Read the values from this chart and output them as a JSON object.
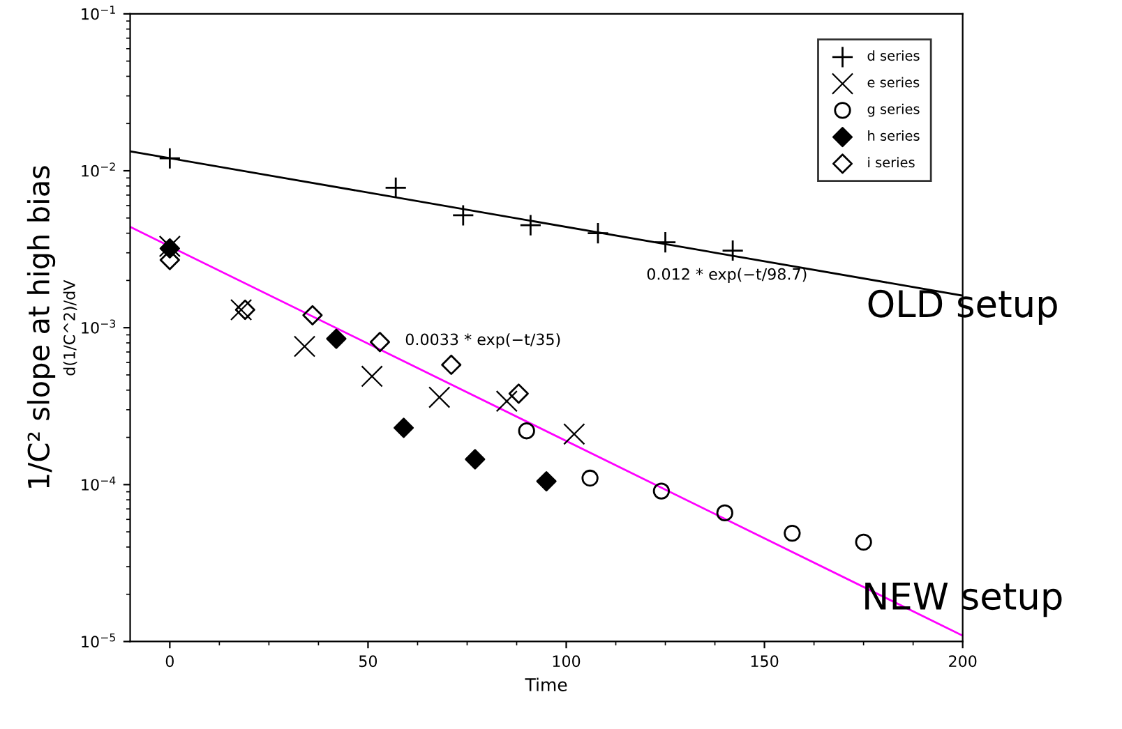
{
  "chart_data": {
    "type": "scatter",
    "xlabel": "Time",
    "ylabel": "1/C² slope at high bias",
    "log": "y",
    "xlim": [
      -10,
      200
    ],
    "xticks": [
      0,
      50,
      100,
      150,
      200
    ],
    "ylim": [
      1e-05,
      0.1
    ],
    "yticks": [
      {
        "value": 1e-05,
        "label": "10$^{−5}$"
      },
      {
        "value": 0.0001,
        "label": "10$^{−4}$"
      },
      {
        "value": 0.001,
        "label": "10$^{−3}$"
      },
      {
        "value": 0.01,
        "label": "10$^{−2}$"
      },
      {
        "value": 0.1,
        "label": "10$^{−1}$"
      }
    ],
    "grid": false,
    "legend": "top right",
    "series": [
      {
        "name": "d series",
        "color": "#000000",
        "marker": "plus",
        "x": [
          0,
          57,
          74,
          91,
          108,
          125,
          142
        ],
        "values": [
          0.012,
          0.0078,
          0.0052,
          0.0045,
          0.004,
          0.0035,
          0.0031
        ]
      },
      {
        "name": "e series",
        "color": "#000000",
        "marker": "x",
        "x": [
          0,
          18,
          34,
          51,
          68,
          85,
          102
        ],
        "values": [
          0.0033,
          0.0013,
          0.00076,
          0.00049,
          0.00036,
          0.00034,
          0.00021
        ]
      },
      {
        "name": "g series",
        "color": "#000000",
        "marker": "circle",
        "x": [
          90,
          106,
          124,
          140,
          157,
          175
        ],
        "values": [
          0.00022,
          0.00011,
          9.1e-05,
          6.6e-05,
          4.9e-05,
          4.3e-05
        ]
      },
      {
        "name": "h series",
        "color": "#000000",
        "marker": "diamond",
        "x": [
          0,
          42,
          59,
          77,
          95
        ],
        "values": [
          0.0032,
          0.00085,
          0.00023,
          0.000145,
          0.000105
        ]
      },
      {
        "name": "i series",
        "color": "#000000",
        "marker": "diamond-open",
        "x": [
          0,
          19,
          36,
          53,
          71,
          88
        ],
        "values": [
          0.0027,
          0.0013,
          0.0012,
          0.00081,
          0.00058,
          0.00038
        ]
      },
      {
        "name": "0.012 * exp(−t/98.7)",
        "type": "line",
        "color": "#000000",
        "x": [
          -10,
          200
        ],
        "values": [
          0.0133,
          0.0016
        ]
      },
      {
        "name": "0.0033 * exp(−t/35)",
        "type": "line",
        "color": "#ff00ff",
        "x": [
          -10,
          200
        ],
        "values": [
          0.00439,
          1.09e-05
        ]
      }
    ],
    "annotations": [
      "d(1/C^2)/dV",
      "OLD setup",
      "NEW setup"
    ]
  }
}
